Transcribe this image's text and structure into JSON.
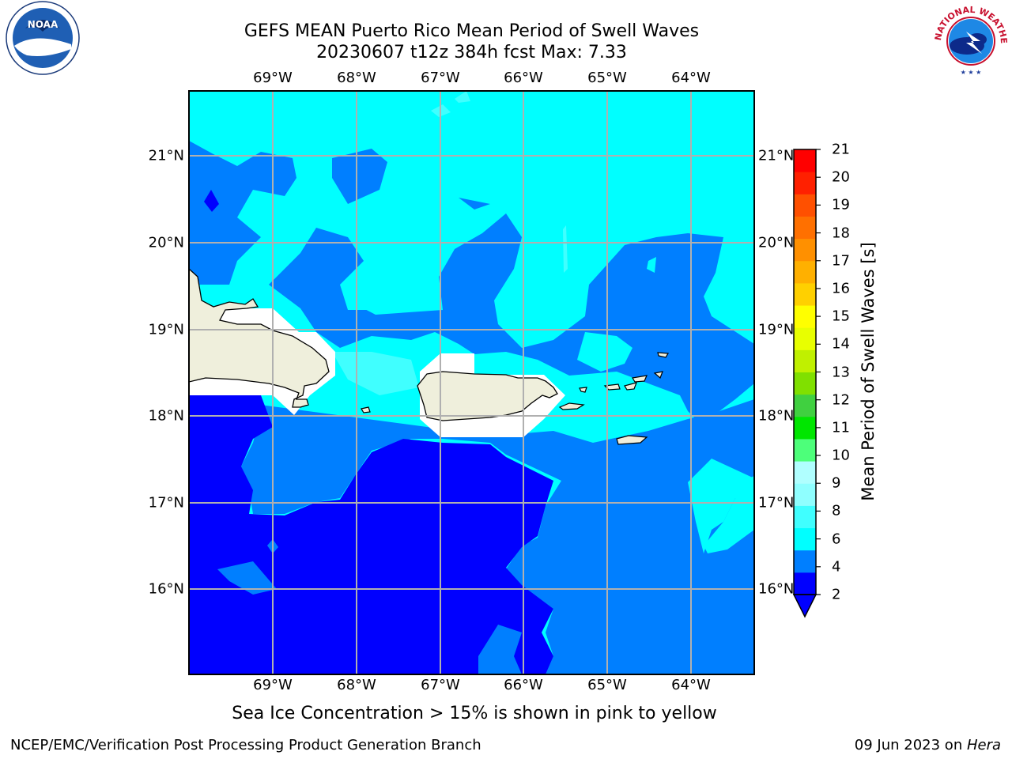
{
  "title_line1": "GEFS MEAN Puerto Rico Mean Period of Swell Waves",
  "title_line2": "20230607 t12z 384h fcst   Max: 7.33",
  "map": {
    "lon_labels": [
      "69°W",
      "68°W",
      "67°W",
      "66°W",
      "65°W",
      "64°W"
    ],
    "lat_labels": [
      "21°N",
      "20°N",
      "19°N",
      "18°N",
      "17°N",
      "16°N"
    ]
  },
  "colorbar": {
    "title": "Mean Period of Swell Waves [s]",
    "labels": [
      "21",
      "20",
      "19",
      "18",
      "17",
      "16",
      "15",
      "14",
      "13",
      "12",
      "11",
      "10",
      "9",
      "8",
      "6",
      "4",
      "2"
    ],
    "colors": [
      "#0000ff",
      "#007fff",
      "#00ffff",
      "#40ffff",
      "#8fffff",
      "#b0ffff",
      "#4dff7a",
      "#00e600",
      "#40d040",
      "#80e000",
      "#c0f000",
      "#e8ff00",
      "#ffff00",
      "#ffd000",
      "#ffb000",
      "#ff9000",
      "#ff7000",
      "#ff5000",
      "#ff2000",
      "#ff0000"
    ],
    "under_color": "#0000ff"
  },
  "note": "Sea Ice Concentration > 15% is shown in pink to yellow",
  "footer_left": "NCEP/EMC/Verification Post Processing Product Generation Branch",
  "footer_right_date": "09 Jun 2023 on ",
  "footer_right_host": "Hera",
  "logos": {
    "noaa_text": "NOAA",
    "nws_text": "NATIONAL WEATHER SERVICE"
  }
}
